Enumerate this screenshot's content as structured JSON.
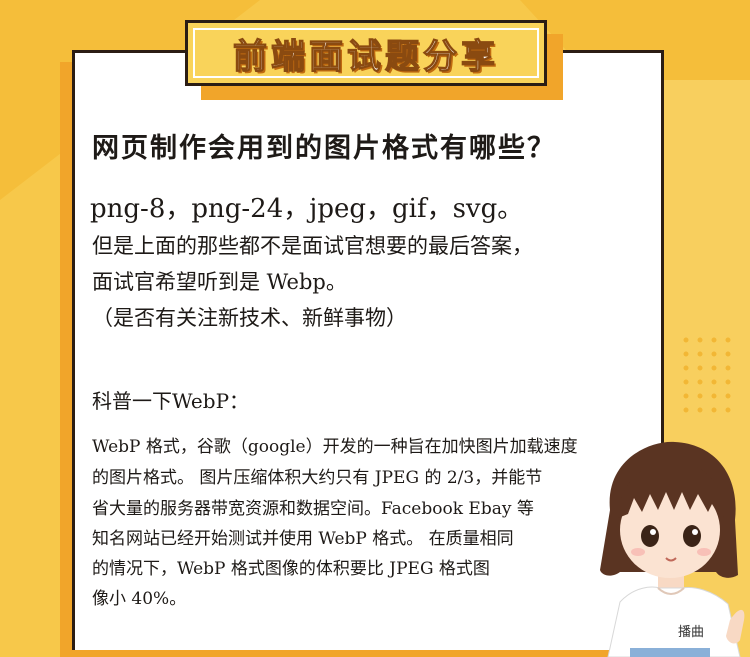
{
  "title": "前端面试题分享",
  "question": "网页制作会用到的图片格式有哪些？",
  "formats_line": "png-8，png-24，jpeg，gif，svg。",
  "answer_lines": [
    "但是上面的那些都不是面试官想要的最后答案，",
    "面试官希望听到是 Webp。",
    "（是否有关注新技术、新鲜事物）"
  ],
  "science_title": "科普一下WebP：",
  "science_lines": [
    "WebP 格式，谷歌（google）开发的一种旨在加快图片加载速度",
    "的图片格式。 图片压缩体积大约只有 JPEG 的 2/3，并能节",
    "省大量的服务器带宽资源和数据空间。Facebook Ebay 等",
    "知名网站已经开始测试并使用 WebP 格式。 在质量相同",
    "的情况下，WebP 格式图像的体积要比 JPEG 格式图",
    "像小 40%。"
  ],
  "mascot_shirt_text": "播曲",
  "colors": {
    "background": "#F7C84A",
    "card": "#FFFFFF",
    "title_fill": "#F9D35A",
    "title_shadow": "#F1A52A",
    "ink": "#1E1A17"
  }
}
